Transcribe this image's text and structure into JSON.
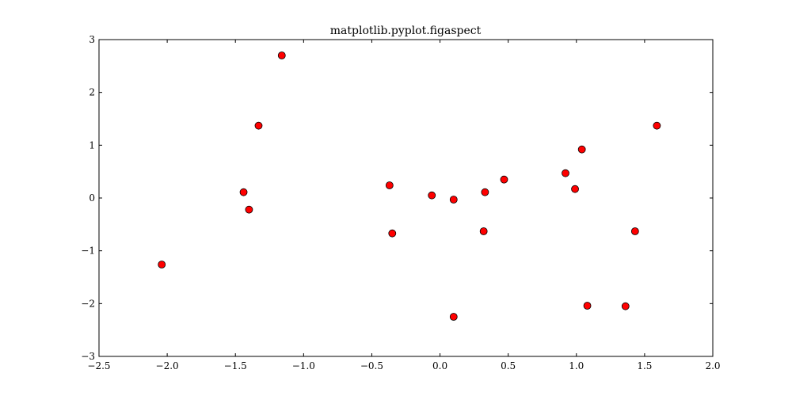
{
  "chart_data": {
    "type": "scatter",
    "title": "matplotlib.pyplot.figaspect",
    "xlabel": "",
    "ylabel": "",
    "xlim": [
      -2.5,
      2.0
    ],
    "ylim": [
      -3,
      3
    ],
    "xticks": [
      -2.5,
      -2.0,
      -1.5,
      -1.0,
      -0.5,
      0.0,
      0.5,
      1.0,
      1.5,
      2.0
    ],
    "xtick_labels": [
      "−2.5",
      "−2.0",
      "−1.5",
      "−1.0",
      "−0.5",
      "0.0",
      "0.5",
      "1.0",
      "1.5",
      "2.0"
    ],
    "yticks": [
      -3,
      -2,
      -1,
      0,
      1,
      2,
      3
    ],
    "ytick_labels": [
      "−3",
      "−2",
      "−1",
      "0",
      "1",
      "2",
      "3"
    ],
    "grid": false,
    "marker_color": "#ff0000",
    "marker_edge_color": "#000000",
    "points": [
      {
        "x": -2.04,
        "y": -1.26
      },
      {
        "x": -1.44,
        "y": 0.11
      },
      {
        "x": -1.4,
        "y": -0.22
      },
      {
        "x": -1.33,
        "y": 1.37
      },
      {
        "x": -1.16,
        "y": 2.7
      },
      {
        "x": -0.37,
        "y": 0.24
      },
      {
        "x": -0.35,
        "y": -0.67
      },
      {
        "x": -0.06,
        "y": 0.05
      },
      {
        "x": 0.1,
        "y": -0.03
      },
      {
        "x": 0.1,
        "y": -2.25
      },
      {
        "x": 0.32,
        "y": -0.63
      },
      {
        "x": 0.33,
        "y": 0.11
      },
      {
        "x": 0.47,
        "y": 0.35
      },
      {
        "x": 0.92,
        "y": 0.47
      },
      {
        "x": 0.99,
        "y": 0.17
      },
      {
        "x": 1.04,
        "y": 0.92
      },
      {
        "x": 1.08,
        "y": -2.04
      },
      {
        "x": 1.36,
        "y": -2.05
      },
      {
        "x": 1.43,
        "y": -0.63
      },
      {
        "x": 1.59,
        "y": 1.37
      }
    ]
  }
}
